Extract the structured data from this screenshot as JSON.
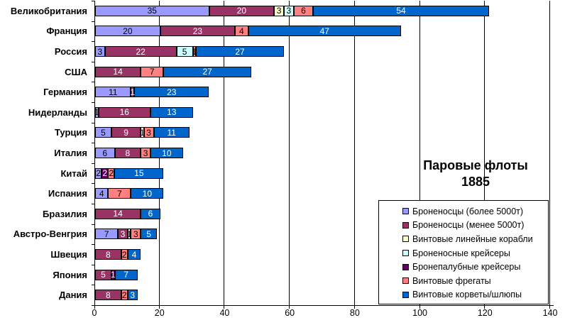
{
  "chart_data": {
    "type": "bar",
    "orientation": "horizontal",
    "stacked": true,
    "title": "Паровые флоты 1885",
    "title_lines": [
      "Паровые флоты",
      "1885"
    ],
    "categories": [
      "Великобритания",
      "Франция",
      "Россия",
      "США",
      "Германия",
      "Нидерланды",
      "Турция",
      "Италия",
      "Китай",
      "Испания",
      "Бразилия",
      "Австро-Венгрия",
      "Швеция",
      "Япония",
      "Дания"
    ],
    "series": [
      {
        "name": "Броненосцы (более 5000т)",
        "color": "#9999FF",
        "label_color": "#000000",
        "values": [
          35,
          20,
          3,
          0,
          11,
          1,
          5,
          6,
          2,
          4,
          0,
          7,
          0,
          0,
          0
        ]
      },
      {
        "name": "Броненосцы (менее 5000т)",
        "color": "#993366",
        "label_color": "#FFFFFF",
        "values": [
          20,
          23,
          22,
          14,
          1,
          16,
          9,
          8,
          0,
          0,
          14,
          3,
          8,
          5,
          8
        ]
      },
      {
        "name": "Винтовые линейные корабли",
        "color": "#FFFFCC",
        "label_color": "#000000",
        "values": [
          3,
          0,
          0,
          0,
          0,
          0,
          1,
          0,
          0,
          0,
          0,
          1,
          0,
          0,
          0
        ]
      },
      {
        "name": "Броненосные крейсеры",
        "color": "#CCFFFF",
        "label_color": "#000000",
        "values": [
          3,
          0,
          5,
          0,
          0,
          0,
          0,
          0,
          0,
          0,
          0,
          0,
          0,
          0,
          0
        ]
      },
      {
        "name": "Бронепалубные крейсеры",
        "color": "#660066",
        "label_color": "#FFFFFF",
        "values": [
          0,
          0,
          0,
          0,
          0,
          0,
          0,
          0,
          2,
          0,
          0,
          0,
          0,
          1,
          0
        ]
      },
      {
        "name": "Винтовые фрегаты",
        "color": "#FF8080",
        "label_color": "#000000",
        "values": [
          6,
          4,
          1,
          7,
          0,
          0,
          3,
          3,
          2,
          7,
          0,
          3,
          2,
          0,
          2
        ]
      },
      {
        "name": "Винтовые корветы/шлюпы",
        "color": "#0066CC",
        "label_color": "#FFFFFF",
        "values": [
          54,
          47,
          27,
          27,
          23,
          13,
          11,
          10,
          15,
          10,
          6,
          5,
          4,
          7,
          3
        ]
      }
    ],
    "totals": [
      121,
      94,
      58,
      48,
      35,
      30,
      29,
      27,
      21,
      21,
      20,
      19,
      14,
      13,
      13
    ],
    "x_ticks": [
      0,
      20,
      40,
      60,
      80,
      100,
      120,
      140
    ],
    "x_tick_labels": [
      "0",
      "20",
      "40",
      "60",
      "80",
      "100",
      "120",
      "140"
    ],
    "xlim": [
      0,
      140
    ],
    "grid": true,
    "legend_position": "inside-bottom-right",
    "background_color": "#FFFFFF",
    "gridline_color": "#000000"
  }
}
